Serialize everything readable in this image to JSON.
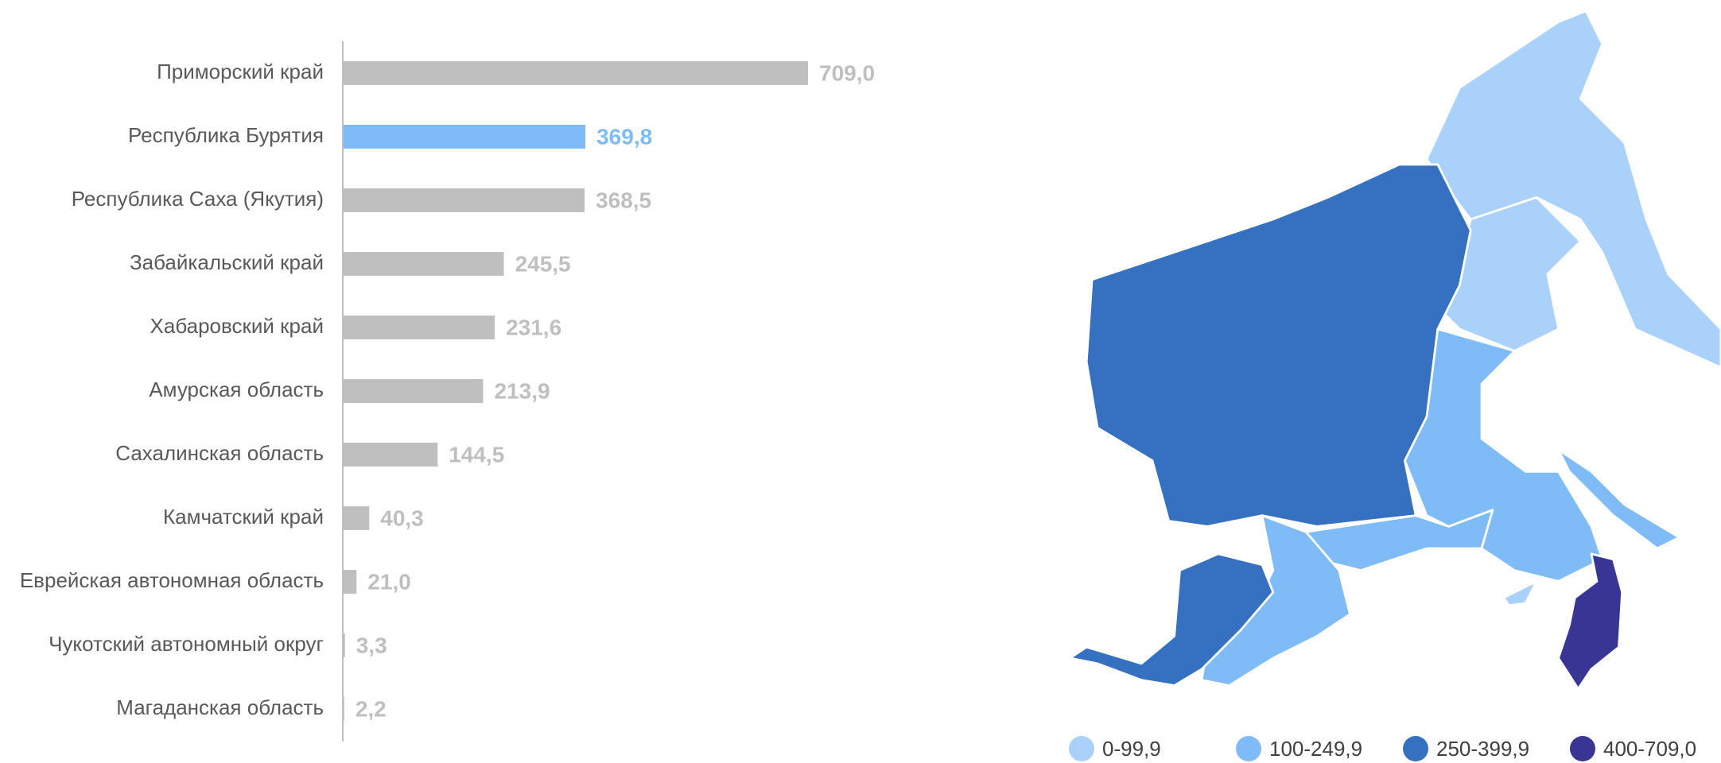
{
  "chart_data": {
    "type": "bar",
    "orientation": "horizontal",
    "categories": [
      "Приморский край",
      "Республика Бурятия",
      "Республика Саха (Якутия)",
      "Забайкальский край",
      "Хабаровский край",
      "Амурская область",
      "Сахалинская область",
      "Камчатский край",
      "Еврейская автономная область",
      "Чукотский автономный округ",
      "Магаданская область"
    ],
    "values": [
      709.0,
      369.8,
      368.5,
      245.5,
      231.6,
      213.9,
      144.5,
      40.3,
      21.0,
      3.3,
      2.2
    ],
    "value_labels": [
      "709,0",
      "369,8",
      "368,5",
      "245,5",
      "231,6",
      "213,9",
      "144,5",
      "40,3",
      "21,0",
      "3,3",
      "2,2"
    ],
    "colors": [
      "#bfbfbf",
      "#7fbbf7",
      "#bfbfbf",
      "#bfbfbf",
      "#bfbfbf",
      "#bfbfbf",
      "#bfbfbf",
      "#bfbfbf",
      "#bfbfbf",
      "#bfbfbf",
      "#bfbfbf"
    ],
    "xlim": [
      0,
      709
    ]
  },
  "map": {
    "legend": [
      {
        "label": "0-99,9",
        "color": "#a9d1fa"
      },
      {
        "label": "100-249,9",
        "color": "#7fbbf7"
      },
      {
        "label": "250-399,9",
        "color": "#3570c1"
      },
      {
        "label": "400-709,0",
        "color": "#393594"
      }
    ]
  }
}
